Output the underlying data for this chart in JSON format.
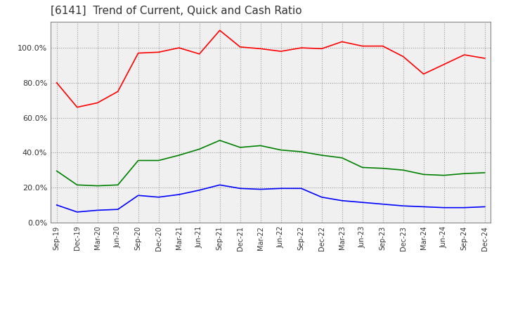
{
  "title": "[6141]  Trend of Current, Quick and Cash Ratio",
  "x_labels": [
    "Sep-19",
    "Dec-19",
    "Mar-20",
    "Jun-20",
    "Sep-20",
    "Dec-20",
    "Mar-21",
    "Jun-21",
    "Sep-21",
    "Dec-21",
    "Mar-22",
    "Jun-22",
    "Sep-22",
    "Dec-22",
    "Mar-23",
    "Jun-23",
    "Sep-23",
    "Dec-23",
    "Mar-24",
    "Jun-24",
    "Sep-24",
    "Dec-24"
  ],
  "current_ratio": [
    80.0,
    66.0,
    68.5,
    75.0,
    97.0,
    97.5,
    100.0,
    96.5,
    110.0,
    100.5,
    99.5,
    98.0,
    100.0,
    99.5,
    103.5,
    101.0,
    101.0,
    95.0,
    85.0,
    90.5,
    96.0,
    94.0
  ],
  "quick_ratio": [
    29.5,
    21.5,
    21.0,
    21.5,
    35.5,
    35.5,
    38.5,
    42.0,
    47.0,
    43.0,
    44.0,
    41.5,
    40.5,
    38.5,
    37.0,
    31.5,
    31.0,
    30.0,
    27.5,
    27.0,
    28.0,
    28.5
  ],
  "cash_ratio": [
    10.0,
    6.0,
    7.0,
    7.5,
    15.5,
    14.5,
    16.0,
    18.5,
    21.5,
    19.5,
    19.0,
    19.5,
    19.5,
    14.5,
    12.5,
    11.5,
    10.5,
    9.5,
    9.0,
    8.5,
    8.5,
    9.0
  ],
  "current_color": "#ff0000",
  "quick_color": "#008000",
  "cash_color": "#0000ff",
  "ylim": [
    0,
    115
  ],
  "yticks": [
    0,
    20,
    40,
    60,
    80,
    100
  ],
  "background_color": "#ffffff",
  "plot_bg_color": "#f0f0f0",
  "grid_color": "#999999",
  "title_fontsize": 11,
  "legend_fontsize": 9
}
